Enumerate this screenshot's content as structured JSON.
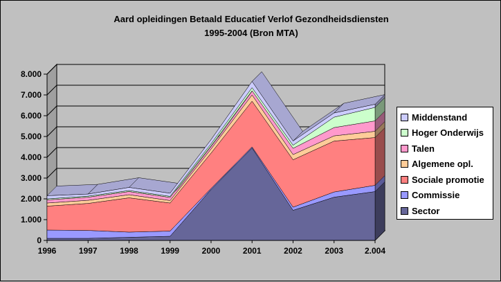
{
  "chart_data": {
    "type": "area",
    "stacked": true,
    "three_d": true,
    "title": "Aard opleidingen Betaald Educatief Verlof Gezondheidsdiensten",
    "subtitle": "1995-2004 (Bron MTA)",
    "categories": [
      "1996",
      "1997",
      "1998",
      "1999",
      "2000",
      "2001",
      "2002",
      "2003",
      "2.004"
    ],
    "ylim": [
      0,
      8000
    ],
    "y_tick_labels": [
      "0",
      "1.000",
      "2.000",
      "3.000",
      "4.000",
      "5.000",
      "6.000",
      "7.000",
      "8.000"
    ],
    "grid": true,
    "legend_position": "right",
    "series": [
      {
        "name": "Sector",
        "color": "#666699",
        "values": [
          100,
          100,
          150,
          200,
          2450,
          4450,
          1450,
          2080,
          2350
        ]
      },
      {
        "name": "Commissie",
        "color": "#9999ff",
        "values": [
          400,
          380,
          250,
          250,
          50,
          50,
          150,
          250,
          300
        ]
      },
      {
        "name": "Sociale promotie",
        "color": "#ff8080",
        "values": [
          1150,
          1300,
          1650,
          1350,
          1700,
          2200,
          2280,
          2450,
          2300
        ]
      },
      {
        "name": "Algemene opl.",
        "color": "#ffcc99",
        "values": [
          150,
          150,
          150,
          120,
          200,
          300,
          250,
          250,
          300
        ]
      },
      {
        "name": "Talen",
        "color": "#ff99cc",
        "values": [
          150,
          150,
          150,
          150,
          150,
          200,
          300,
          400,
          500
        ]
      },
      {
        "name": "Hoger Onderwijs",
        "color": "#ccffcc",
        "values": [
          50,
          50,
          50,
          50,
          100,
          150,
          150,
          500,
          650
        ]
      },
      {
        "name": "Middenstand",
        "color": "#ccccff",
        "values": [
          150,
          100,
          150,
          150,
          200,
          300,
          200,
          200,
          150
        ]
      }
    ]
  }
}
